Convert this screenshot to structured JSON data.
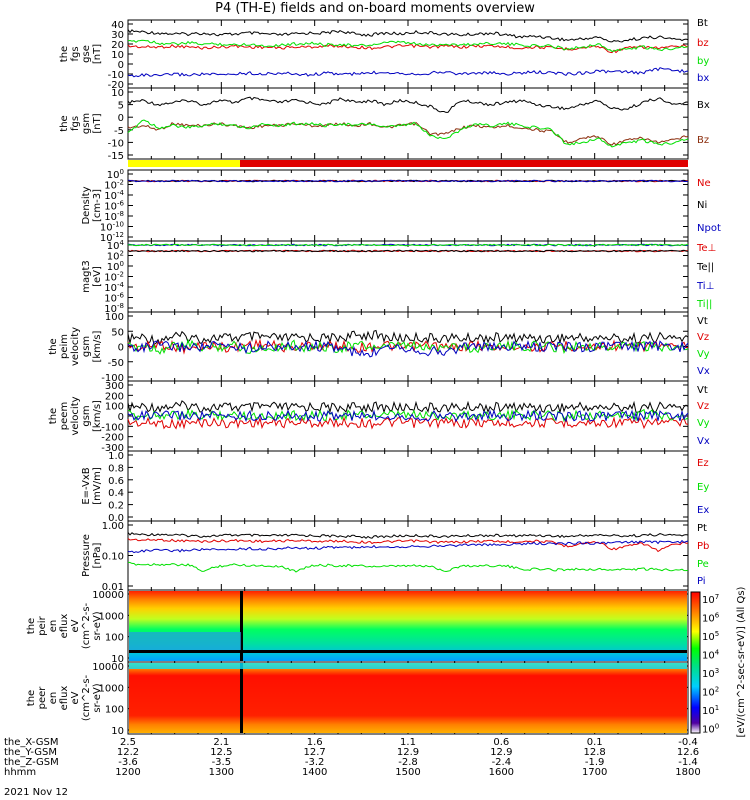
{
  "title": "P4 (TH-E) fields and on-board moments overview",
  "date_label": "2021 Nov 12",
  "colorbar_label": "[eV/(cm^2-sec-sr-eV)] (All Qs)",
  "colorbar_ticks": [
    "10^7",
    "10^6",
    "10^5",
    "10^4",
    "10^3",
    "10^2",
    "10^1",
    "10^0"
  ],
  "colors": {
    "black": "#000000",
    "red": "#e00000",
    "green": "#00e000",
    "blue": "#0000c0",
    "yellow": "#ffff00",
    "brown": "#8b2d0d"
  },
  "xaxis": {
    "row_labels": [
      "the_X-GSM",
      "the_Y-GSM",
      "the_Z-GSM",
      "hhmm"
    ],
    "columns": [
      [
        "2.5",
        "12.2",
        "-3.6",
        "1200"
      ],
      [
        "2.1",
        "12.5",
        "-3.5",
        "1300"
      ],
      [
        "1.6",
        "12.7",
        "-3.2",
        "1400"
      ],
      [
        "1.1",
        "12.9",
        "-2.8",
        "1500"
      ],
      [
        "0.6",
        "12.9",
        "-2.4",
        "1600"
      ],
      [
        "0.1",
        "12.8",
        "-1.9",
        "1700"
      ],
      [
        "-0.4",
        "12.6",
        "-1.4",
        "1800"
      ]
    ]
  },
  "chart_data": [
    {
      "type": "line",
      "ylabel": [
        "the",
        "fgs",
        "gse",
        "[nT]"
      ],
      "yticks": [
        "40",
        "30",
        "20",
        "10",
        "0",
        "-10",
        "-20"
      ],
      "ylim": [
        -20,
        40
      ],
      "series": [
        {
          "name": "Bt",
          "color": "black",
          "values": [
            33,
            32,
            31,
            30,
            30,
            31,
            29,
            30,
            31,
            30,
            29,
            30,
            31,
            31,
            33,
            30,
            29,
            31,
            30,
            32,
            31,
            30,
            29,
            30,
            31,
            29,
            27,
            28,
            26,
            24,
            25,
            27,
            22,
            24,
            26,
            27,
            25,
            24
          ]
        },
        {
          "name": "bz",
          "color": "red",
          "values": [
            18,
            17,
            17,
            18,
            17,
            16,
            17,
            18,
            17,
            17,
            16,
            17,
            17,
            18,
            18,
            17,
            16,
            17,
            18,
            18,
            17,
            18,
            17,
            18,
            18,
            17,
            16,
            17,
            16,
            15,
            16,
            18,
            12,
            16,
            17,
            16,
            17,
            18
          ]
        },
        {
          "name": "by",
          "color": "green",
          "values": [
            22,
            24,
            21,
            20,
            21,
            20,
            20,
            19,
            20,
            18,
            19,
            20,
            21,
            19,
            20,
            18,
            19,
            21,
            22,
            20,
            19,
            20,
            19,
            20,
            21,
            20,
            19,
            18,
            18,
            15,
            17,
            20,
            13,
            15,
            17,
            14,
            16,
            18
          ]
        },
        {
          "name": "bx",
          "color": "blue",
          "values": [
            -12,
            -11,
            -12,
            -10,
            -11,
            -10,
            -11,
            -10,
            -9,
            -10,
            -9,
            -10,
            -11,
            -9,
            -10,
            -10,
            -9,
            -8,
            -9,
            -10,
            -9,
            -8,
            -10,
            -9,
            -9,
            -10,
            -9,
            -8,
            -9,
            -10,
            -9,
            -7,
            -8,
            -8,
            -9,
            -5,
            -6,
            -8
          ]
        }
      ]
    },
    {
      "type": "line",
      "ylabel": [
        "the",
        "fgs",
        "gsm",
        "[nT]"
      ],
      "yticks": [
        "10",
        "5",
        "0",
        "-5",
        "-10",
        "-15"
      ],
      "ylim": [
        -18,
        12
      ],
      "series": [
        {
          "name": "Bx",
          "color": "black",
          "values": [
            7,
            8,
            6,
            7,
            8,
            6,
            8,
            7,
            9,
            8,
            7,
            8,
            7,
            6,
            9,
            7,
            8,
            6,
            8,
            7,
            5,
            2,
            8,
            7,
            6,
            7,
            8,
            6,
            5,
            4,
            6,
            8,
            4,
            4,
            7,
            9,
            6,
            7
          ]
        },
        {
          "name": "Bz",
          "color": "brown",
          "values": [
            -5,
            -4,
            -6,
            -3,
            -4,
            -4,
            -3,
            -4,
            -5,
            -4,
            -4,
            -3,
            -4,
            -4,
            -3,
            -4,
            -3,
            -5,
            -4,
            -3,
            -8,
            -8,
            -5,
            -4,
            -5,
            -4,
            -5,
            -6,
            -7,
            -12,
            -10,
            -9,
            -13,
            -11,
            -10,
            -12,
            -11,
            -9
          ]
        },
        {
          "name": "By",
          "color": "green",
          "values": [
            -8,
            -1,
            -5,
            -4,
            -5,
            -4,
            -3,
            -4,
            -5,
            -3,
            -4,
            -3,
            -3,
            -4,
            -3,
            -4,
            -3,
            -5,
            -4,
            -3,
            -9,
            -10,
            -6,
            -3,
            -4,
            -3,
            -4,
            -5,
            -6,
            -13,
            -12,
            -10,
            -14,
            -12,
            -11,
            -13,
            -12,
            -10
          ]
        }
      ]
    },
    {
      "type": "line",
      "ylabel": [
        "Density",
        "[cm-3]"
      ],
      "yticks": [
        "10^0",
        "10^-2",
        "10^-4",
        "10^-6",
        "10^-8",
        "10^-10",
        "10^-12"
      ],
      "series": [
        {
          "name": "Ne",
          "color": "red",
          "values": [
            1,
            1,
            1,
            1,
            1,
            1,
            1,
            1,
            1,
            1
          ]
        },
        {
          "name": "Ni",
          "color": "black",
          "values": [
            1,
            1,
            1,
            1,
            1,
            1,
            1,
            1,
            1,
            1
          ]
        },
        {
          "name": "Npot",
          "color": "blue",
          "values": [
            1,
            1,
            1,
            1,
            1,
            1,
            1,
            1,
            1,
            1
          ]
        }
      ]
    },
    {
      "type": "line",
      "ylabel": [
        "magt3",
        "[eV]"
      ],
      "yticks": [
        "10^4",
        "10^2",
        "10^0",
        "10^-2",
        "10^-4",
        "10^-6",
        "10^-8"
      ],
      "series": [
        {
          "name": "Te⊥",
          "color": "red",
          "values": [
            1000,
            1000,
            1000,
            1000,
            1000
          ]
        },
        {
          "name": "Te||",
          "color": "black",
          "values": [
            1000,
            1000,
            1000,
            1000,
            1000
          ]
        },
        {
          "name": "Ti⊥",
          "color": "blue",
          "values": [
            3000,
            3000,
            3000,
            3000,
            3000
          ]
        },
        {
          "name": "Ti||",
          "color": "green",
          "values": [
            3000,
            3000,
            3000,
            3000,
            3000
          ]
        }
      ]
    },
    {
      "type": "line",
      "ylabel": [
        "the",
        "peim",
        "velocity",
        "gsm",
        "[km/s]"
      ],
      "yticks": [
        "100",
        "50",
        "0",
        "-50",
        "-100"
      ],
      "ylim": [
        -100,
        100
      ],
      "series": [
        {
          "name": "Vt",
          "color": "black",
          "values": [
            25,
            30,
            20,
            35,
            30,
            25,
            30,
            28,
            32,
            30,
            26,
            28,
            30,
            27,
            30,
            35,
            40,
            30,
            28,
            30,
            27,
            29,
            26,
            28,
            30,
            27,
            29,
            28,
            26,
            30,
            28,
            27,
            29,
            26,
            28,
            30,
            28,
            27
          ]
        },
        {
          "name": "Vz",
          "color": "red",
          "values": [
            5,
            -5,
            10,
            0,
            -10,
            5,
            0,
            -5,
            10,
            5,
            0,
            -5,
            5,
            0,
            5,
            -5,
            0,
            5,
            -5,
            0,
            5,
            -5,
            0,
            5,
            -5,
            0,
            5,
            -5,
            0,
            5,
            -5,
            0,
            5,
            -5,
            0,
            5,
            -5,
            0
          ]
        },
        {
          "name": "Vy",
          "color": "green",
          "values": [
            -5,
            5,
            -10,
            0,
            5,
            -5,
            0,
            5,
            -10,
            -5,
            0,
            5,
            -5,
            0,
            -5,
            5,
            0,
            -5,
            5,
            0,
            -5,
            5,
            0,
            -10,
            5,
            0,
            -5,
            5,
            0,
            -5,
            5,
            0,
            -5,
            5,
            0,
            -5,
            5,
            0
          ]
        },
        {
          "name": "Vx",
          "color": "blue",
          "values": [
            0,
            -5,
            5,
            -3,
            0,
            -2,
            3,
            0,
            -5,
            2,
            0,
            -3,
            2,
            0,
            -5,
            -20,
            -30,
            10,
            0,
            -10,
            -15,
            -20,
            0,
            5,
            -5,
            0,
            2,
            -3,
            0,
            2,
            -2,
            0,
            3,
            -2,
            0,
            2,
            -3,
            0
          ]
        }
      ]
    },
    {
      "type": "line",
      "ylabel": [
        "the",
        "peem",
        "velocity",
        "gsm",
        "[km/s]"
      ],
      "yticks": [
        "300",
        "200",
        "100",
        "0",
        "-100",
        "-200",
        "-300"
      ],
      "ylim": [
        -300,
        300
      ],
      "series": [
        {
          "name": "Vt",
          "color": "black",
          "values": [
            80,
            90,
            85,
            95,
            100,
            80,
            90,
            85,
            80,
            90,
            85,
            80,
            90,
            85,
            80,
            85,
            90,
            80,
            85,
            90,
            80,
            85,
            80,
            90,
            85,
            80,
            90,
            85,
            80,
            85,
            90,
            80,
            85,
            90,
            80,
            85,
            90,
            80
          ]
        },
        {
          "name": "Vz",
          "color": "red",
          "values": [
            -60,
            -70,
            -65,
            -80,
            -70,
            -60,
            -65,
            -70,
            -60,
            -65,
            -70,
            -60,
            -65,
            -70,
            -60,
            -65,
            -70,
            -60,
            -65,
            -70,
            -60,
            -65,
            -70,
            -60,
            -65,
            -70,
            -60,
            -65,
            -70,
            -60,
            -65,
            -70,
            -60,
            -65,
            -70,
            -60,
            -65,
            -70
          ]
        },
        {
          "name": "Vy",
          "color": "green",
          "values": [
            10,
            0,
            20,
            5,
            10,
            0,
            15,
            5,
            10,
            0,
            15,
            5,
            10,
            0,
            15,
            5,
            10,
            0,
            15,
            5,
            10,
            0,
            15,
            5,
            10,
            0,
            15,
            5,
            10,
            0,
            15,
            5,
            10,
            0,
            15,
            5,
            10,
            0
          ]
        },
        {
          "name": "Vx",
          "color": "blue",
          "values": [
            0,
            5,
            -5,
            10,
            0,
            5,
            -5,
            0,
            5,
            -5,
            0,
            5,
            -5,
            0,
            5,
            -5,
            0,
            5,
            10,
            -5,
            0,
            5,
            -5,
            0,
            5,
            -5,
            0,
            5,
            -5,
            0,
            5,
            -5,
            0,
            5,
            -5,
            0,
            5,
            -5
          ]
        }
      ]
    },
    {
      "type": "line",
      "ylabel": [
        "E=-VxB",
        "[mV/m]"
      ],
      "yticks": [
        "1.0",
        "0.8",
        "0.6",
        "0.4",
        "0.2",
        "0.0"
      ],
      "series": [
        {
          "name": "Ez",
          "color": "red",
          "values": []
        },
        {
          "name": "Ey",
          "color": "green",
          "values": []
        },
        {
          "name": "Ex",
          "color": "blue",
          "values": []
        }
      ]
    },
    {
      "type": "line",
      "ylabel": [
        "Pressure",
        "[nPa]"
      ],
      "yticks": [
        "1.00",
        "0.10",
        "0.01"
      ],
      "ylim": [
        0.01,
        1.0
      ],
      "log": true,
      "series": [
        {
          "name": "Pt",
          "color": "black",
          "values": [
            0.52,
            0.48,
            0.5,
            0.47,
            0.45,
            0.43,
            0.45,
            0.47,
            0.46,
            0.44,
            0.45,
            0.46,
            0.45,
            0.44,
            0.43,
            0.42,
            0.4,
            0.42,
            0.44,
            0.45,
            0.43,
            0.42,
            0.44,
            0.45,
            0.46,
            0.44,
            0.45,
            0.46,
            0.44,
            0.42,
            0.45,
            0.47,
            0.45,
            0.44,
            0.46,
            0.48,
            0.47,
            0.46
          ]
        },
        {
          "name": "Pb",
          "color": "red",
          "values": [
            0.34,
            0.32,
            0.33,
            0.31,
            0.3,
            0.29,
            0.3,
            0.31,
            0.3,
            0.29,
            0.3,
            0.31,
            0.3,
            0.29,
            0.3,
            0.28,
            0.27,
            0.28,
            0.29,
            0.3,
            0.28,
            0.27,
            0.28,
            0.29,
            0.3,
            0.28,
            0.29,
            0.3,
            0.27,
            0.2,
            0.25,
            0.28,
            0.16,
            0.2,
            0.25,
            0.14,
            0.22,
            0.26
          ]
        },
        {
          "name": "Pe",
          "color": "green",
          "values": [
            0.055,
            0.05,
            0.052,
            0.05,
            0.048,
            0.03,
            0.045,
            0.05,
            0.048,
            0.046,
            0.045,
            0.03,
            0.045,
            0.048,
            0.047,
            0.046,
            0.044,
            0.043,
            0.045,
            0.046,
            0.044,
            0.03,
            0.045,
            0.046,
            0.047,
            0.045,
            0.035,
            0.036,
            0.034,
            0.035,
            0.036,
            0.035,
            0.034,
            0.035,
            0.036,
            0.034,
            0.035,
            0.034
          ]
        },
        {
          "name": "Pi",
          "color": "blue",
          "values": [
            0.13,
            0.14,
            0.15,
            0.14,
            0.15,
            0.16,
            0.15,
            0.16,
            0.17,
            0.16,
            0.17,
            0.18,
            0.17,
            0.18,
            0.19,
            0.18,
            0.19,
            0.2,
            0.19,
            0.21,
            0.2,
            0.21,
            0.22,
            0.23,
            0.22,
            0.23,
            0.24,
            0.25,
            0.24,
            0.25,
            0.26,
            0.25,
            0.26,
            0.27,
            0.28,
            0.27,
            0.28,
            0.28
          ]
        }
      ]
    },
    {
      "type": "heatmap",
      "ylabel": [
        "the",
        "peir",
        "en",
        "eflux",
        "eV",
        "(cm^2-s-",
        "sr-eV)"
      ],
      "yticks": [
        "10000",
        "1000",
        "100",
        "10"
      ]
    },
    {
      "type": "heatmap",
      "ylabel": [
        "the",
        "peer",
        "en",
        "eflux",
        "eV",
        "(cm^2-s-",
        "sr-eV)"
      ],
      "yticks": [
        "10000",
        "1000",
        "100",
        "10"
      ]
    }
  ]
}
